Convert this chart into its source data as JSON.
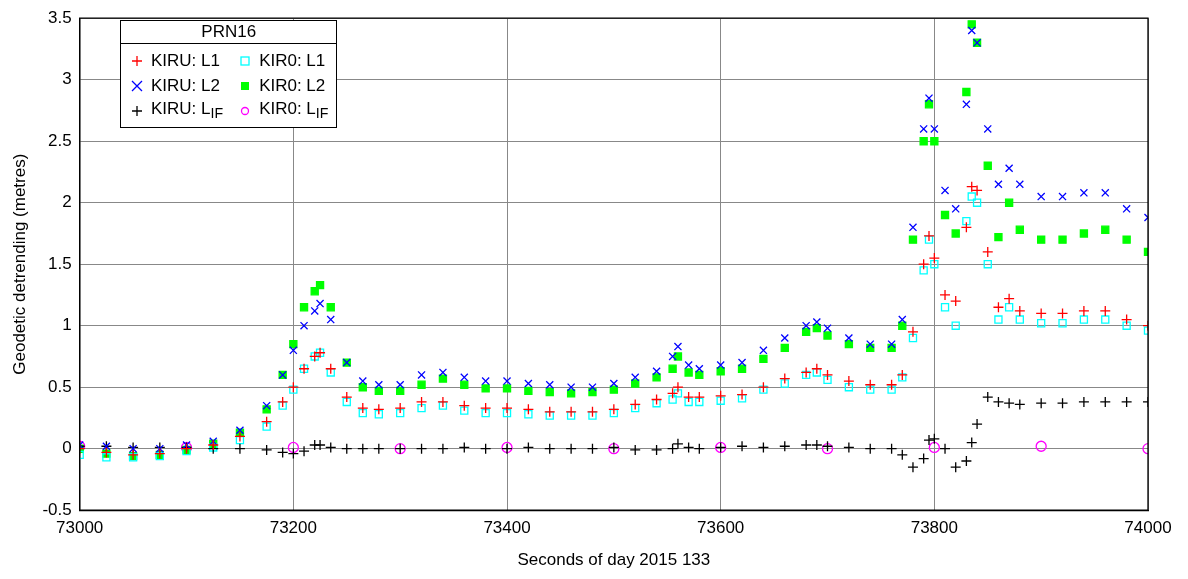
{
  "chart_data": {
    "type": "scatter",
    "xlabel": "Seconds of day 2015 133",
    "ylabel": "Geodetic detrending (metres)",
    "legend_title": "PRN16",
    "legend": "top left",
    "grid": true,
    "x": [
      73000,
      73025,
      73050,
      73075,
      73100,
      73125,
      73150,
      73175,
      73190,
      73200,
      73210,
      73220,
      73225,
      73235,
      73250,
      73265,
      73280,
      73300,
      73320,
      73340,
      73360,
      73380,
      73400,
      73420,
      73440,
      73460,
      73480,
      73500,
      73520,
      73540,
      73555,
      73560,
      73570,
      73580,
      73600,
      73620,
      73640,
      73660,
      73680,
      73690,
      73700,
      73720,
      73740,
      73760,
      73770,
      73780,
      73790,
      73795,
      73800,
      73810,
      73820,
      73830,
      73835,
      73840,
      73850,
      73860,
      73870,
      73880,
      73900,
      73920,
      73940,
      73960,
      73980,
      74000
    ],
    "xlim": [
      73000,
      74000
    ],
    "xticks": [
      73000,
      73200,
      73400,
      73600,
      73800,
      74000
    ],
    "ylim": [
      -0.5,
      3.5
    ],
    "yticks": [
      -0.5,
      0,
      0.5,
      1,
      1.5,
      2,
      2.5,
      3,
      3.5
    ],
    "series": [
      {
        "name": "KIRU: L1",
        "color": "#ff0000",
        "marker": "cross",
        "values": [
          0.0,
          -0.03,
          -0.05,
          -0.04,
          0,
          0.03,
          0.1,
          0.22,
          0.38,
          0.5,
          0.65,
          0.75,
          0.78,
          0.65,
          0.42,
          0.33,
          0.32,
          0.33,
          0.38,
          0.38,
          0.35,
          0.33,
          0.33,
          0.32,
          0.3,
          0.3,
          0.3,
          0.32,
          0.36,
          0.4,
          0.45,
          0.5,
          0.42,
          0.42,
          0.43,
          0.44,
          0.5,
          0.57,
          0.62,
          0.65,
          0.6,
          0.55,
          0.52,
          0.52,
          0.6,
          0.95,
          1.5,
          1.73,
          1.55,
          1.25,
          1.2,
          1.8,
          2.13,
          2.1,
          1.6,
          1.15,
          1.22,
          1.12,
          1.1,
          1.1,
          1.12,
          1.12,
          1.05,
          1.0
        ]
      },
      {
        "name": "KIRU: L2",
        "color": "#0000ff",
        "marker": "x",
        "values": [
          0.03,
          0.02,
          0,
          0,
          0.03,
          0.06,
          0.15,
          0.35,
          0.6,
          0.8,
          1.0,
          1.12,
          1.18,
          1.05,
          0.7,
          0.55,
          0.52,
          0.52,
          0.6,
          0.62,
          0.58,
          0.55,
          0.55,
          0.53,
          0.52,
          0.5,
          0.5,
          0.53,
          0.58,
          0.63,
          0.75,
          0.83,
          0.68,
          0.65,
          0.68,
          0.7,
          0.8,
          0.9,
          1.0,
          1.03,
          0.98,
          0.9,
          0.85,
          0.85,
          1.05,
          1.8,
          2.6,
          2.85,
          2.6,
          2.1,
          1.95,
          2.8,
          3.4,
          3.3,
          2.6,
          2.15,
          2.28,
          2.15,
          2.05,
          2.05,
          2.08,
          2.08,
          1.95,
          1.88
        ]
      },
      {
        "name": "KIRU: L$_{IF}$",
        "color": "#000000",
        "marker": "cross",
        "values": [
          0.02,
          0.02,
          0.01,
          0.01,
          0.01,
          0,
          0,
          -0.01,
          -0.03,
          -0.04,
          -0.02,
          0.03,
          0.03,
          0.01,
          0,
          0,
          0,
          0,
          0,
          0,
          0.01,
          0,
          0,
          0.01,
          0,
          0,
          0,
          0.01,
          -0.01,
          -0.01,
          0,
          0.04,
          0.01,
          0,
          0.01,
          0.02,
          0.01,
          0.02,
          0.03,
          0.03,
          0.02,
          0.01,
          0,
          0,
          -0.05,
          -0.15,
          -0.08,
          0.07,
          0.08,
          0,
          -0.15,
          -0.1,
          0.05,
          0.2,
          0.42,
          0.38,
          0.37,
          0.36,
          0.37,
          0.37,
          0.38,
          0.38,
          0.38,
          0.38
        ]
      },
      {
        "name": "KIR0: L1",
        "color": "#00ffff",
        "marker": "square",
        "values": [
          -0.05,
          -0.07,
          -0.07,
          -0.06,
          -0.02,
          0.01,
          0.07,
          0.18,
          0.35,
          0.48,
          0.65,
          0.75,
          0.78,
          0.62,
          0.38,
          0.29,
          0.28,
          0.29,
          0.33,
          0.35,
          0.31,
          0.29,
          0.29,
          0.28,
          0.27,
          0.27,
          0.27,
          0.29,
          0.33,
          0.37,
          0.4,
          0.45,
          0.38,
          0.38,
          0.39,
          0.41,
          0.48,
          0.53,
          0.6,
          0.62,
          0.56,
          0.5,
          0.48,
          0.48,
          0.58,
          0.9,
          1.45,
          1.7,
          1.5,
          1.15,
          1.0,
          1.85,
          2.05,
          2.0,
          1.5,
          1.05,
          1.15,
          1.05,
          1.02,
          1.02,
          1.05,
          1.05,
          1.0,
          0.96
        ]
      },
      {
        "name": "KIR0: L2",
        "color": "#00ff00",
        "values": [
          0.0,
          -0.04,
          -0.06,
          -0.05,
          -0.01,
          0.04,
          0.13,
          0.32,
          0.6,
          0.85,
          1.15,
          1.28,
          1.33,
          1.15,
          0.7,
          0.5,
          0.47,
          0.47,
          0.52,
          0.57,
          0.52,
          0.49,
          0.49,
          0.47,
          0.46,
          0.45,
          0.46,
          0.48,
          0.53,
          0.58,
          0.65,
          0.75,
          0.62,
          0.6,
          0.63,
          0.65,
          0.73,
          0.82,
          0.95,
          0.98,
          0.92,
          0.85,
          0.82,
          0.82,
          1.0,
          1.7,
          2.5,
          2.8,
          2.5,
          1.9,
          1.75,
          2.9,
          3.45,
          3.3,
          2.3,
          1.72,
          2.0,
          1.78,
          1.7,
          1.7,
          1.75,
          1.78,
          1.7,
          1.6
        ]
      },
      {
        "name": "KIR0: L$_{IF}$",
        "color": "#ff00ff",
        "marker": "circle",
        "x": [
          73000,
          73100,
          73200,
          73300,
          73400,
          73500,
          73600,
          73700,
          73800,
          73900,
          74000
        ],
        "values": [
          0.02,
          0.01,
          0.01,
          0,
          0.01,
          0,
          0.01,
          0,
          0.01,
          0.02,
          0
        ]
      }
    ]
  }
}
